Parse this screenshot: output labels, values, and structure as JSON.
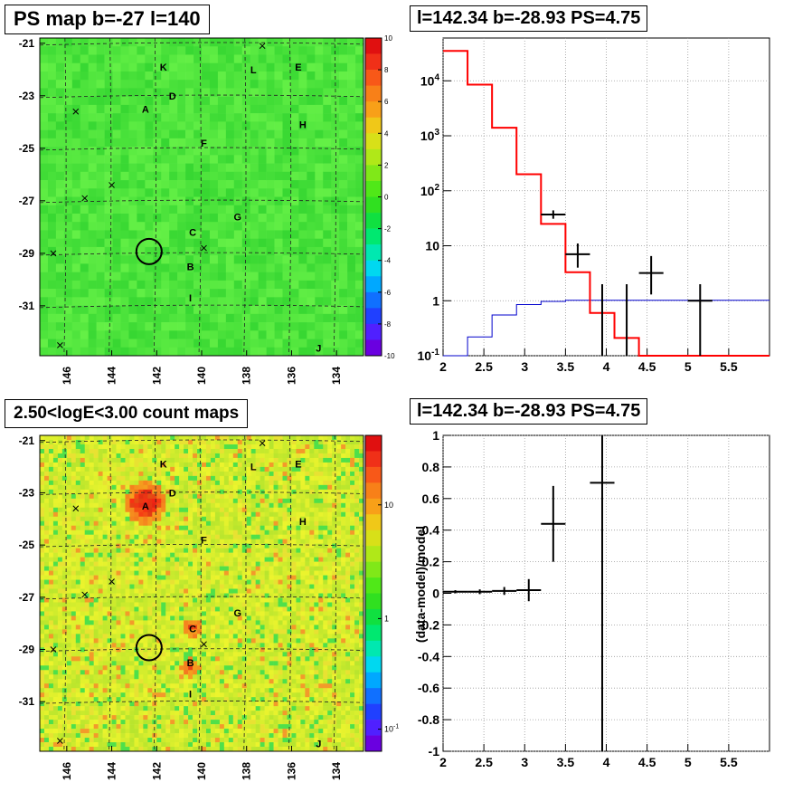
{
  "panels": {
    "ps_map": {
      "title": "PS map b=-27 l=140"
    },
    "spectrum": {
      "title": "l=142.34 b=-28.93 PS=4.75"
    },
    "count_map": {
      "title": "2.50<logE<3.00 count maps"
    },
    "residual": {
      "title": "l=142.34 b=-28.93 PS=4.75"
    }
  },
  "colors": {
    "model_line": "#ff0000",
    "background_line": "#0000cc",
    "data_points": "#000000",
    "ps_map_base": "#3ee83e",
    "count_map_base": "#b8ee3a",
    "hotspot": "#e01818"
  },
  "chart_data": [
    {
      "type": "heatmap",
      "title": "PS map b=-27 l=140",
      "x_ticks": [
        "146",
        "144",
        "142",
        "140",
        "138",
        "136",
        "134"
      ],
      "y_ticks": [
        "-21",
        "-23",
        "-25",
        "-27",
        "-29",
        "-31"
      ],
      "colorbar_ticks": [
        "10",
        "8",
        "6",
        "4",
        "2",
        "0",
        "-2",
        "-4",
        "-6",
        "-8",
        "-10"
      ],
      "colorbar_range": [
        -10,
        10
      ],
      "sources": [
        {
          "label": "K",
          "l": 141.7,
          "b": -21.9
        },
        {
          "label": "L",
          "l": 137.7,
          "b": -22.0
        },
        {
          "label": "E",
          "l": 135.7,
          "b": -21.9
        },
        {
          "label": "D",
          "l": 141.3,
          "b": -23.0
        },
        {
          "label": "A",
          "l": 142.5,
          "b": -23.5
        },
        {
          "label": "H",
          "l": 135.5,
          "b": -24.1
        },
        {
          "label": "F",
          "l": 139.9,
          "b": -24.8
        },
        {
          "label": "G",
          "l": 138.4,
          "b": -27.6
        },
        {
          "label": "C",
          "l": 140.4,
          "b": -28.2
        },
        {
          "label": "B",
          "l": 140.5,
          "b": -29.5
        },
        {
          "label": "I",
          "l": 140.5,
          "b": -30.7
        },
        {
          "label": "J",
          "l": 134.8,
          "b": -32.6
        }
      ],
      "markers": [
        {
          "l": 137.3,
          "b": -21.1
        },
        {
          "l": 145.6,
          "b": -23.6
        },
        {
          "l": 144.0,
          "b": -26.4
        },
        {
          "l": 145.2,
          "b": -26.9
        },
        {
          "l": 146.6,
          "b": -29.0
        },
        {
          "l": 139.9,
          "b": -28.8
        },
        {
          "l": 146.3,
          "b": -32.5
        }
      ],
      "circle": {
        "l": 142.34,
        "b": -28.93
      }
    },
    {
      "type": "line",
      "title": "l=142.34 b=-28.93 PS=4.75",
      "x_ticks": [
        "2",
        "2.5",
        "3",
        "3.5",
        "4",
        "4.5",
        "5",
        "5.5"
      ],
      "y_ticks": [
        "10^-1",
        "1",
        "10",
        "10^2",
        "10^3",
        "10^4"
      ],
      "xlim": [
        2,
        6
      ],
      "ylim": [
        0.1,
        60000
      ],
      "y_log": true,
      "series": [
        {
          "type": "step",
          "edges": [
            2.0,
            2.3,
            2.6,
            2.9,
            3.2,
            3.5,
            3.8,
            4.1,
            4.4,
            6.0
          ],
          "values": [
            35000,
            8500,
            1400,
            200,
            25,
            3.3,
            0.6,
            0.21,
            0.1
          ]
        },
        {
          "type": "step",
          "edges": [
            2.0,
            2.3,
            2.6,
            2.9,
            3.2,
            3.5,
            6.0
          ],
          "values": [
            0.1,
            0.22,
            0.55,
            0.85,
            0.97,
            1.02
          ]
        },
        {
          "type": "points",
          "points": [
            {
              "x": 3.35,
              "y": 37,
              "xerr": 0.15,
              "ylo": 31,
              "yhi": 44
            },
            {
              "x": 3.65,
              "y": 7,
              "xerr": 0.15,
              "ylo": 4,
              "yhi": 11
            },
            {
              "x": 3.95,
              "y": 1,
              "xerr": 0.0,
              "ylo": 0.1,
              "yhi": 2
            },
            {
              "x": 4.25,
              "y": 1,
              "xerr": 0.0,
              "ylo": 0.1,
              "yhi": 2
            },
            {
              "x": 4.55,
              "y": 3.2,
              "xerr": 0.15,
              "ylo": 1.3,
              "yhi": 6.5
            },
            {
              "x": 5.15,
              "y": 1,
              "xerr": 0.15,
              "ylo": 0.1,
              "yhi": 2
            }
          ]
        }
      ]
    },
    {
      "type": "heatmap",
      "title": "2.50<logE<3.00 count maps",
      "x_ticks": [
        "146",
        "144",
        "142",
        "140",
        "138",
        "136",
        "134"
      ],
      "y_ticks": [
        "-21",
        "-23",
        "-25",
        "-27",
        "-29",
        "-31"
      ],
      "colorbar_ticks": [
        "10",
        "1",
        "10^-1"
      ],
      "colorbar_log": true
    },
    {
      "type": "scatter",
      "title": "l=142.34 b=-28.93 PS=4.75",
      "ylabel": "(data-model)/model",
      "x_ticks": [
        "2",
        "2.5",
        "3",
        "3.5",
        "4",
        "4.5",
        "5",
        "5.5"
      ],
      "y_ticks": [
        "1",
        "0.8",
        "0.6",
        "0.4",
        "0.2",
        "0",
        "-0.2",
        "-0.4",
        "-0.6",
        "-0.8",
        "-1"
      ],
      "xlim": [
        2,
        6
      ],
      "ylim": [
        -1,
        1
      ],
      "points": [
        {
          "x": 2.15,
          "y": 0.01,
          "xerr": 0.15,
          "ylo": 0.0,
          "yhi": 0.02
        },
        {
          "x": 2.45,
          "y": 0.01,
          "xerr": 0.15,
          "ylo": -0.005,
          "yhi": 0.025
        },
        {
          "x": 2.75,
          "y": 0.015,
          "xerr": 0.15,
          "ylo": -0.01,
          "yhi": 0.04
        },
        {
          "x": 3.05,
          "y": 0.02,
          "xerr": 0.15,
          "ylo": -0.05,
          "yhi": 0.09
        },
        {
          "x": 3.35,
          "y": 0.44,
          "xerr": 0.15,
          "ylo": 0.2,
          "yhi": 0.68
        },
        {
          "x": 3.95,
          "y": 0.7,
          "xerr": 0.15,
          "ylo": -1.0,
          "yhi": 1.0
        }
      ]
    }
  ]
}
